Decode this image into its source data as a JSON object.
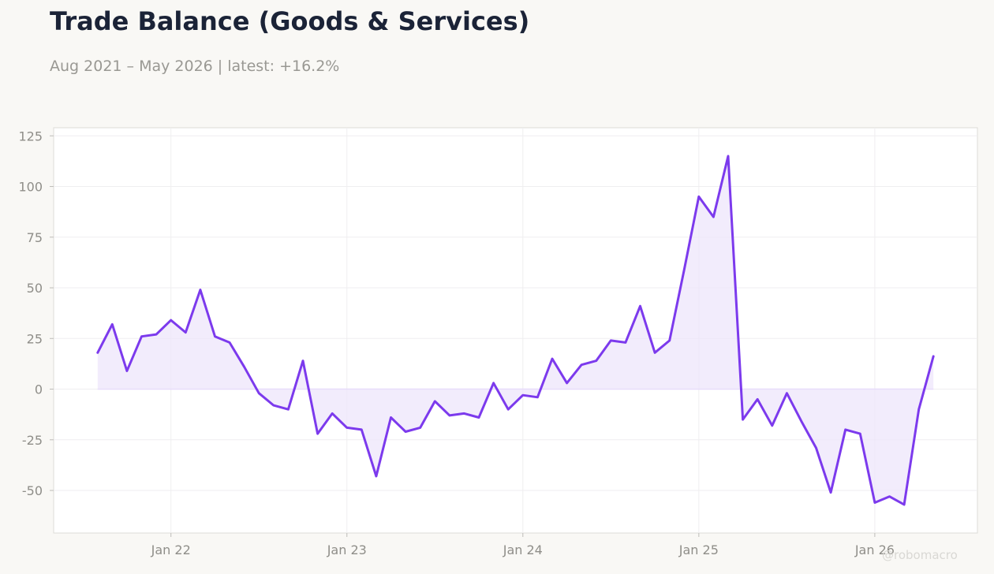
{
  "header": {
    "title": "Trade Balance (Goods & Services)",
    "subtitle": "Aug 2021 – May 2026 | latest: +16.2%"
  },
  "watermark": "@robomacro",
  "colors": {
    "line": "#7c3aed",
    "fill": "#ede5fb",
    "plot_background": "#ffffff",
    "page_background": "#f9f8f5"
  },
  "chart_data": {
    "type": "area",
    "title": "Trade Balance (Goods & Services)",
    "subtitle": "Aug 2021 – May 2026 | latest: +16.2%",
    "xlabel": "",
    "ylabel": "",
    "grid": true,
    "xlim": [
      "2021-05",
      "2026-08"
    ],
    "ylim": [
      -71,
      129
    ],
    "y_ticks": [
      125,
      100,
      75,
      50,
      25,
      0,
      -25,
      -50
    ],
    "x_ticks": [
      {
        "label": "Jan 22",
        "date": "2022-01"
      },
      {
        "label": "Jan 23",
        "date": "2023-01"
      },
      {
        "label": "Jan 24",
        "date": "2024-01"
      },
      {
        "label": "Jan 25",
        "date": "2025-01"
      },
      {
        "label": "Jan 26",
        "date": "2026-01"
      }
    ],
    "series": [
      {
        "x": [
          "2021-08",
          "2021-09",
          "2021-10",
          "2021-11",
          "2021-12",
          "2022-01",
          "2022-02",
          "2022-03",
          "2022-04",
          "2022-05",
          "2022-06",
          "2022-07",
          "2022-08",
          "2022-09",
          "2022-10",
          "2022-11",
          "2022-12",
          "2023-01",
          "2023-02",
          "2023-03",
          "2023-04",
          "2023-05",
          "2023-06",
          "2023-07",
          "2023-08",
          "2023-09",
          "2023-10",
          "2023-11",
          "2023-12",
          "2024-01",
          "2024-02",
          "2024-03",
          "2024-04",
          "2024-05",
          "2024-06",
          "2024-07",
          "2024-08",
          "2024-09",
          "2024-10",
          "2024-11",
          "2024-12",
          "2025-01",
          "2025-02",
          "2025-03",
          "2025-04",
          "2025-05",
          "2025-06",
          "2025-07",
          "2025-08",
          "2025-09",
          "2025-10",
          "2025-11",
          "2025-12",
          "2026-01",
          "2026-02",
          "2026-03",
          "2026-04",
          "2026-05"
        ],
        "values": [
          18,
          32,
          9,
          26,
          27,
          34,
          28,
          49,
          26,
          23,
          11,
          -2,
          -8,
          -10,
          14,
          -22,
          -12,
          -19,
          -20,
          -43,
          -14,
          -21,
          -19,
          -6,
          -13,
          -12,
          -14,
          3,
          -10,
          -3,
          -4,
          15,
          3,
          12,
          14,
          24,
          23,
          41,
          18,
          24,
          59,
          95,
          85,
          115,
          -15,
          -5,
          -18,
          -2,
          -16,
          -29,
          -51,
          -20,
          -22,
          -56,
          -53,
          -57,
          -10,
          16.2
        ]
      }
    ]
  }
}
